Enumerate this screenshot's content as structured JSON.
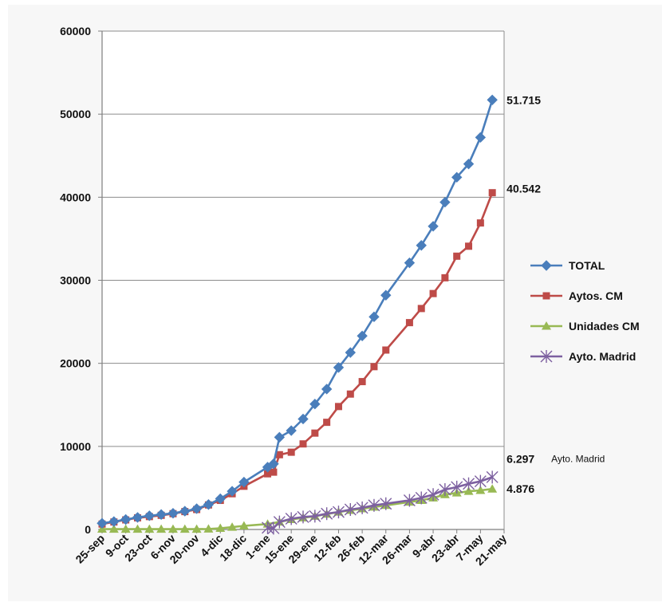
{
  "chart_data": {
    "type": "line",
    "title": "",
    "xlabel": "",
    "ylabel": "",
    "ylim": [
      0,
      60000
    ],
    "yticks": [
      0,
      10000,
      20000,
      30000,
      40000,
      50000,
      60000
    ],
    "grid": "horizontal",
    "legend_position": "right",
    "x_tick_labels": [
      "25-sep",
      "9-oct",
      "23-oct",
      "6-nov",
      "20-nov",
      "4-dic",
      "18-dic",
      "1-ene",
      "15-ene",
      "29-ene",
      "12-feb",
      "26-feb",
      "12-mar",
      "26-mar",
      "9-abr",
      "23-abr",
      "7-may",
      "21-may"
    ],
    "x_tick_weeks": [
      0,
      2,
      4,
      6,
      8,
      10,
      12,
      14,
      16,
      18,
      20,
      22,
      24,
      26,
      28,
      30,
      32,
      34
    ],
    "week_count": 34,
    "series": [
      {
        "name": "TOTAL",
        "color": "#4a7ebb",
        "marker": "diamond",
        "points": [
          [
            0,
            750
          ],
          [
            1,
            950
          ],
          [
            2,
            1200
          ],
          [
            3,
            1450
          ],
          [
            4,
            1650
          ],
          [
            5,
            1800
          ],
          [
            6,
            1950
          ],
          [
            7,
            2200
          ],
          [
            8,
            2500
          ],
          [
            9,
            3000
          ],
          [
            10,
            3700
          ],
          [
            11,
            4600
          ],
          [
            12,
            5700
          ],
          [
            14,
            7500
          ],
          [
            14.5,
            7900
          ],
          [
            15,
            11100
          ],
          [
            16,
            11900
          ],
          [
            17,
            13300
          ],
          [
            18,
            15100
          ],
          [
            19,
            16900
          ],
          [
            20,
            19500
          ],
          [
            21,
            21300
          ],
          [
            22,
            23300
          ],
          [
            23,
            25600
          ],
          [
            24,
            28200
          ],
          [
            26,
            32100
          ],
          [
            27,
            34200
          ],
          [
            28,
            36500
          ],
          [
            29,
            39400
          ],
          [
            30,
            42400
          ],
          [
            31,
            44000
          ],
          [
            32,
            47200
          ],
          [
            33,
            51715
          ]
        ],
        "end_label": "51.715"
      },
      {
        "name": "Aytos. CM",
        "color": "#be4b48",
        "marker": "square",
        "points": [
          [
            0,
            650
          ],
          [
            1,
            900
          ],
          [
            2,
            1150
          ],
          [
            3,
            1400
          ],
          [
            4,
            1550
          ],
          [
            5,
            1700
          ],
          [
            6,
            1900
          ],
          [
            7,
            2150
          ],
          [
            8,
            2400
          ],
          [
            9,
            2950
          ],
          [
            10,
            3500
          ],
          [
            11,
            4300
          ],
          [
            12,
            5200
          ],
          [
            14,
            6700
          ],
          [
            14.5,
            6900
          ],
          [
            15,
            9000
          ],
          [
            16,
            9300
          ],
          [
            17,
            10300
          ],
          [
            18,
            11600
          ],
          [
            19,
            12900
          ],
          [
            20,
            14800
          ],
          [
            21,
            16300
          ],
          [
            22,
            17800
          ],
          [
            23,
            19600
          ],
          [
            24,
            21600
          ],
          [
            26,
            24900
          ],
          [
            27,
            26600
          ],
          [
            28,
            28400
          ],
          [
            29,
            30300
          ],
          [
            30,
            32900
          ],
          [
            31,
            34100
          ],
          [
            32,
            36900
          ],
          [
            33,
            40542
          ]
        ],
        "end_label": "40.542"
      },
      {
        "name": "Unidades CM",
        "color": "#98b954",
        "marker": "triangle",
        "points": [
          [
            0,
            50
          ],
          [
            1,
            40
          ],
          [
            2,
            40
          ],
          [
            3,
            40
          ],
          [
            4,
            40
          ],
          [
            5,
            40
          ],
          [
            6,
            40
          ],
          [
            7,
            40
          ],
          [
            8,
            40
          ],
          [
            9,
            60
          ],
          [
            10,
            140
          ],
          [
            11,
            280
          ],
          [
            12,
            430
          ],
          [
            14,
            650
          ],
          [
            15,
            900
          ],
          [
            16,
            1200
          ],
          [
            17,
            1400
          ],
          [
            18,
            1600
          ],
          [
            19,
            1850
          ],
          [
            20,
            2100
          ],
          [
            21,
            2300
          ],
          [
            22,
            2500
          ],
          [
            23,
            2700
          ],
          [
            24,
            2900
          ],
          [
            26,
            3300
          ],
          [
            27,
            3500
          ],
          [
            28,
            3800
          ],
          [
            29,
            4200
          ],
          [
            30,
            4400
          ],
          [
            31,
            4600
          ],
          [
            32,
            4700
          ],
          [
            33,
            4876
          ]
        ],
        "end_label": "4.876"
      },
      {
        "name": "Ayto. Madrid",
        "color": "#7d60a0",
        "marker": "star",
        "points": [
          [
            14,
            200
          ],
          [
            14.5,
            150
          ],
          [
            15,
            900
          ],
          [
            16,
            1300
          ],
          [
            17,
            1500
          ],
          [
            18,
            1600
          ],
          [
            19,
            1900
          ],
          [
            20,
            2100
          ],
          [
            21,
            2400
          ],
          [
            22,
            2600
          ],
          [
            23,
            2900
          ],
          [
            24,
            3100
          ],
          [
            26,
            3500
          ],
          [
            27,
            3800
          ],
          [
            28,
            4200
          ],
          [
            29,
            4800
          ],
          [
            30,
            5100
          ],
          [
            31,
            5500
          ],
          [
            32,
            5800
          ],
          [
            33,
            6297
          ]
        ],
        "end_label": "6.297",
        "end_annotation": "Ayto. Madrid"
      }
    ]
  }
}
